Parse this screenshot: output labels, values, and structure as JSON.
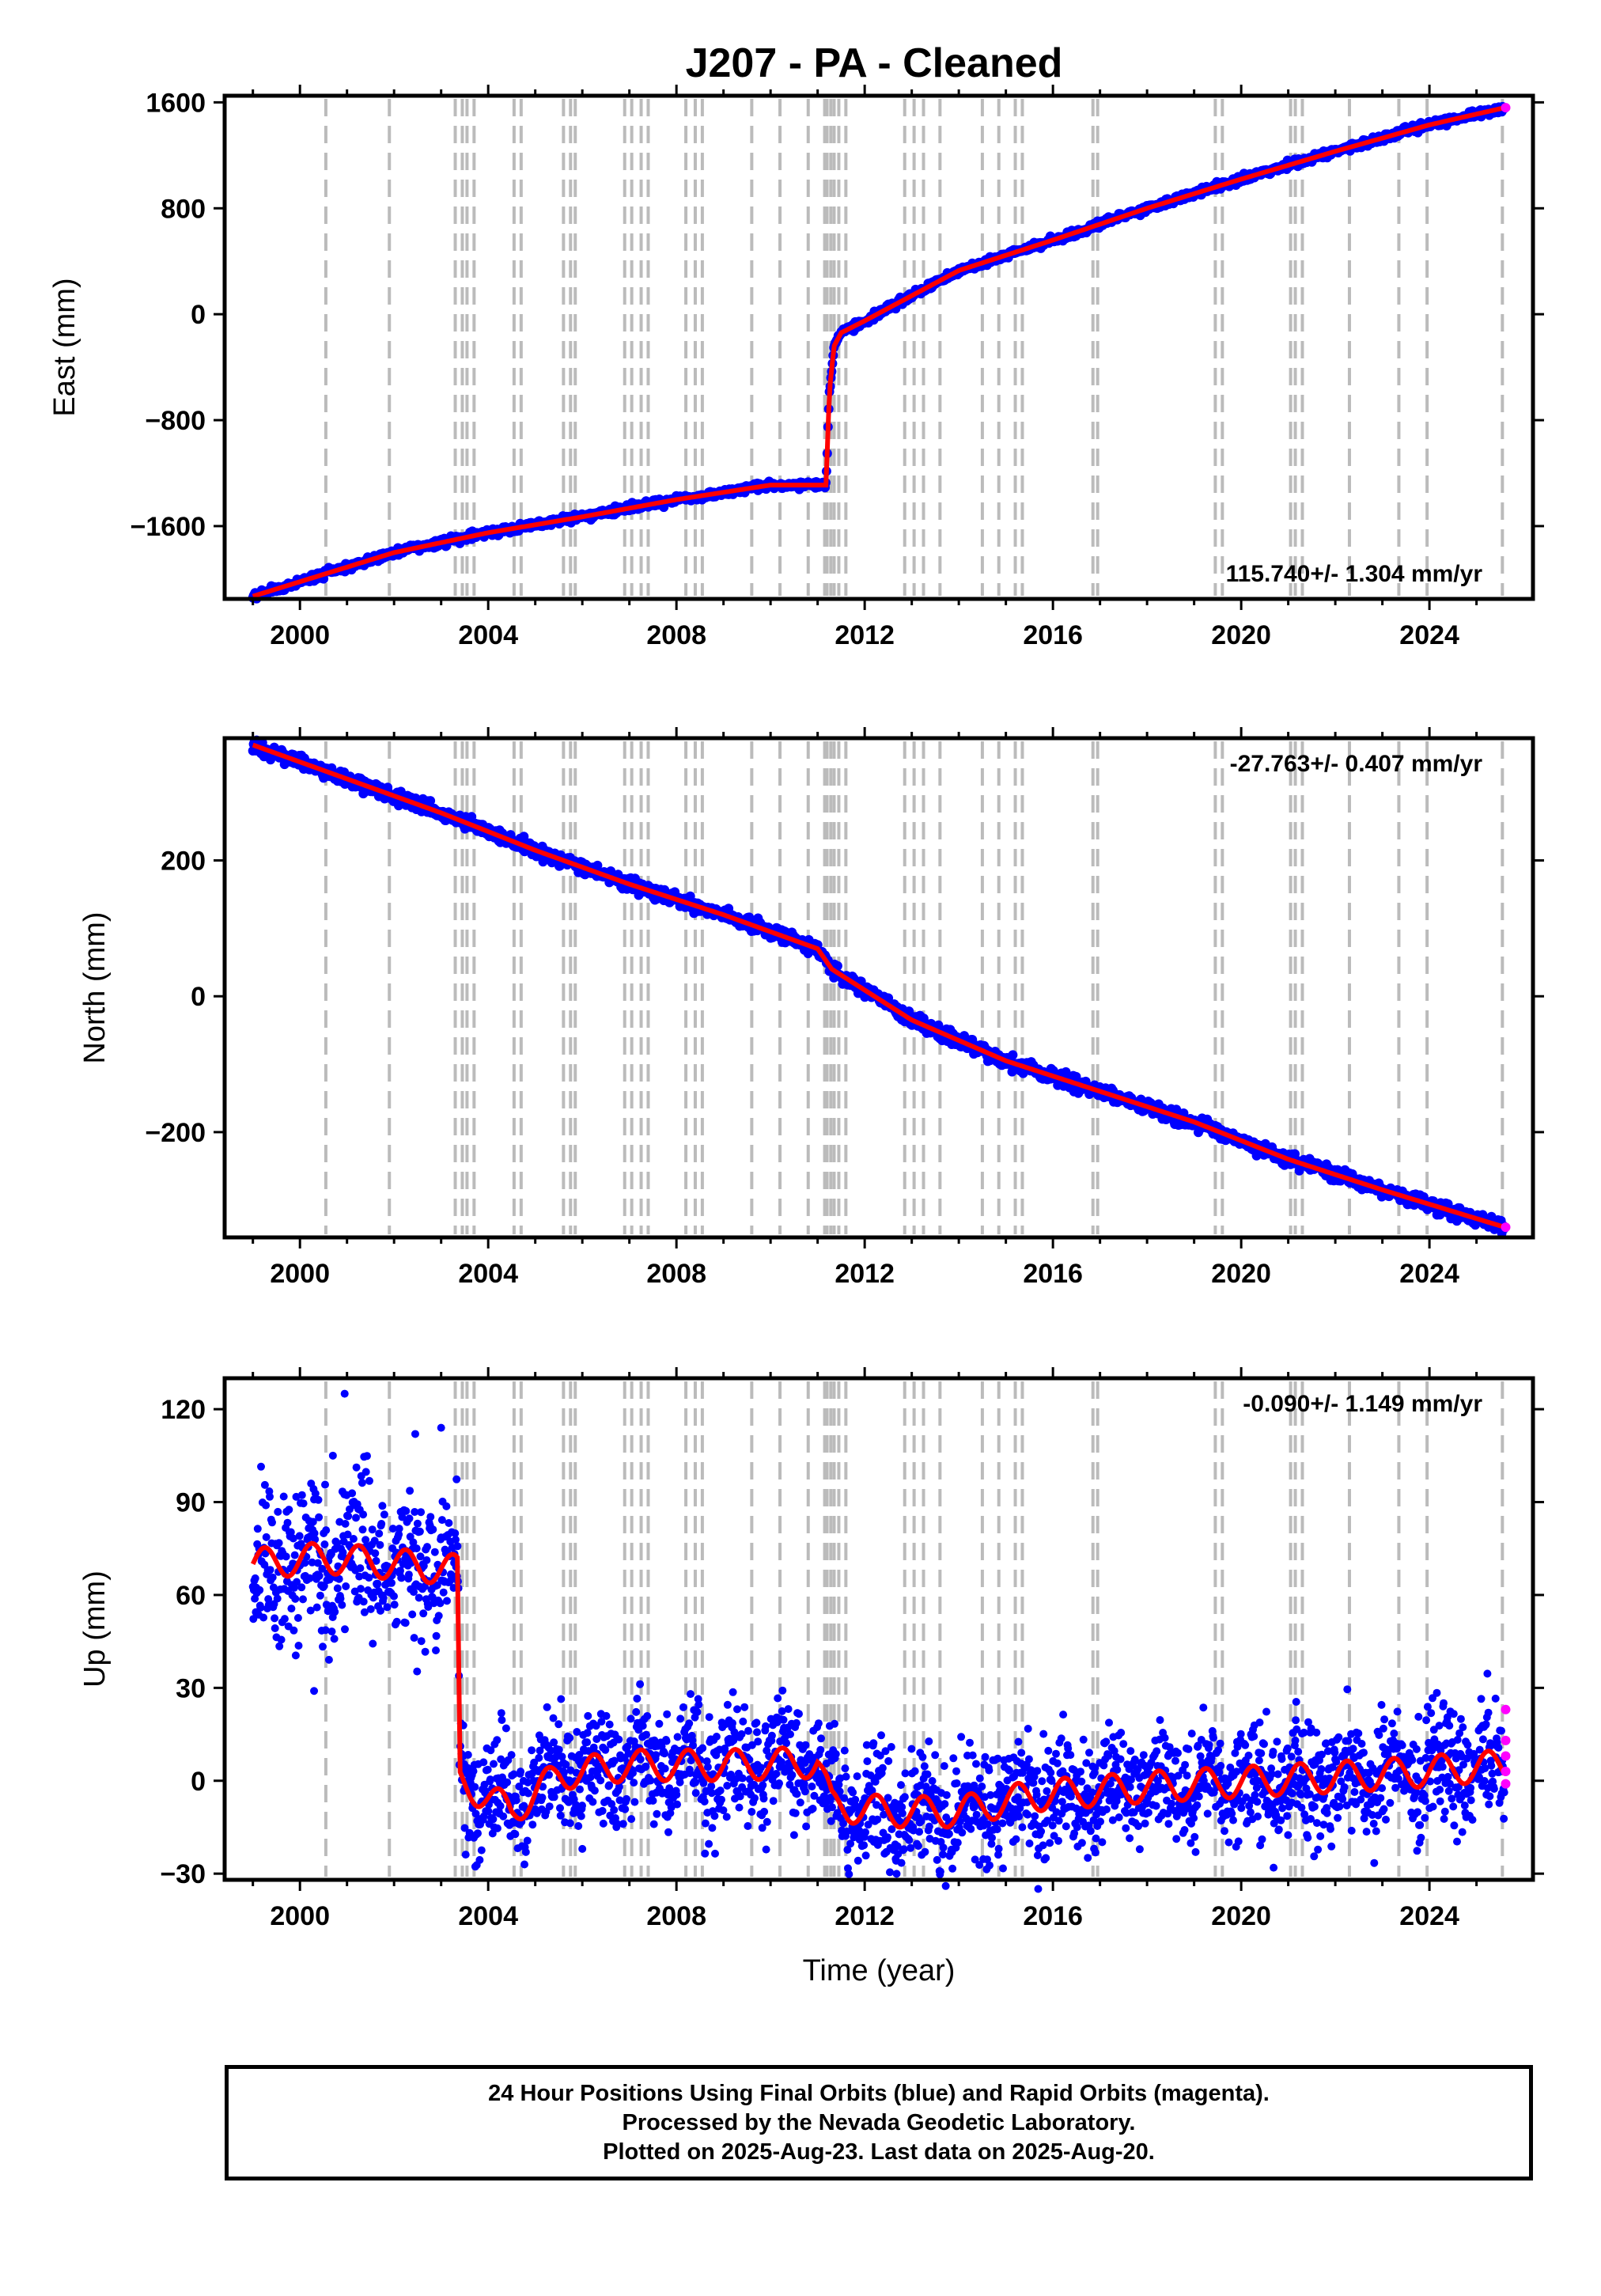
{
  "title": "J207  - PA - Cleaned",
  "xlabel": "Time (year)",
  "footer": {
    "line1": "24 Hour Positions Using Final Orbits (blue) and Rapid Orbits (magenta).",
    "line2": "Processed by the Nevada Geodetic Laboratory.",
    "line3": "Plotted on 2025-Aug-23. Last data on 2025-Aug-20."
  },
  "colors": {
    "final": "#0000ff",
    "rapid": "#ff00ff",
    "model": "#ff0000",
    "events": "#bbbbbb",
    "frame": "#000000"
  },
  "chart_data": [
    {
      "type": "scatter",
      "name": "east",
      "ylabel": "East (mm)",
      "rate_text": "115.740+/- 1.304 mm/yr",
      "xlim": [
        1998.4,
        2026.2
      ],
      "ylim": [
        -2150,
        1650
      ],
      "yticks": [
        1600,
        800,
        0,
        -800,
        -1600
      ],
      "ytick_labels": [
        "1600",
        "800",
        "0",
        "−800",
        "−1600"
      ],
      "xticks": [
        2000,
        2004,
        2008,
        2012,
        2016,
        2020,
        2024
      ],
      "xtick_labels": [
        "2000",
        "2004",
        "2008",
        "2012",
        "2016",
        "2020",
        "2024"
      ],
      "grid": false,
      "x": [
        1999.0,
        2000.0,
        2002.0,
        2004.0,
        2006.0,
        2008.0,
        2010.0,
        2011.18,
        2011.25,
        2011.35,
        2011.5,
        2012.0,
        2014.0,
        2016.0,
        2018.0,
        2020.0,
        2022.0,
        2024.0,
        2025.6
      ],
      "y": [
        -2130,
        -2020,
        -1800,
        -1650,
        -1530,
        -1400,
        -1290,
        -1290,
        -580,
        -240,
        -140,
        -50,
        330,
        560,
        800,
        1020,
        1230,
        1430,
        1560
      ]
    },
    {
      "type": "scatter",
      "name": "north",
      "ylabel": "North (mm)",
      "rate_text": "-27.763+/- 0.407 mm/yr",
      "xlim": [
        1998.4,
        2026.2
      ],
      "ylim": [
        -355,
        380
      ],
      "yticks": [
        200,
        0,
        -200
      ],
      "ytick_labels": [
        "200",
        "0",
        "−200"
      ],
      "xticks": [
        2000,
        2004,
        2008,
        2012,
        2016,
        2020,
        2024
      ],
      "xtick_labels": [
        "2000",
        "2004",
        "2008",
        "2012",
        "2016",
        "2020",
        "2024"
      ],
      "grid": false,
      "x": [
        1999.0,
        2001.0,
        2003.0,
        2005.0,
        2007.0,
        2009.0,
        2011.0,
        2011.3,
        2013.0,
        2015.0,
        2017.0,
        2019.0,
        2021.0,
        2023.0,
        2025.6
      ],
      "y": [
        370,
        320,
        270,
        215,
        165,
        120,
        70,
        40,
        -35,
        -95,
        -140,
        -185,
        -240,
        -285,
        -340
      ]
    },
    {
      "type": "scatter",
      "name": "up",
      "ylabel": "Up (mm)",
      "rate_text": "-0.090+/- 1.149 mm/yr",
      "xlim": [
        1998.4,
        2026.2
      ],
      "ylim": [
        -32,
        130
      ],
      "yticks": [
        120,
        90,
        60,
        30,
        0,
        -30
      ],
      "ytick_labels": [
        "120",
        "90",
        "60",
        "30",
        "0",
        "−30"
      ],
      "xticks": [
        2000,
        2004,
        2008,
        2012,
        2016,
        2020,
        2024
      ],
      "xtick_labels": [
        "2000",
        "2004",
        "2008",
        "2012",
        "2016",
        "2020",
        "2024"
      ],
      "grid": false,
      "x": [
        1999.0,
        2000.5,
        2002.0,
        2003.35,
        2003.4,
        2004.5,
        2005.5,
        2007.0,
        2009.0,
        2011.0,
        2011.3,
        2012.5,
        2014.0,
        2015.5,
        2018.0,
        2020.5,
        2023.0,
        2025.6
      ],
      "y": [
        70,
        72,
        70,
        68,
        0,
        -10,
        2,
        5,
        5,
        6,
        -8,
        -10,
        -10,
        -5,
        -2,
        0,
        2,
        5
      ]
    }
  ]
}
